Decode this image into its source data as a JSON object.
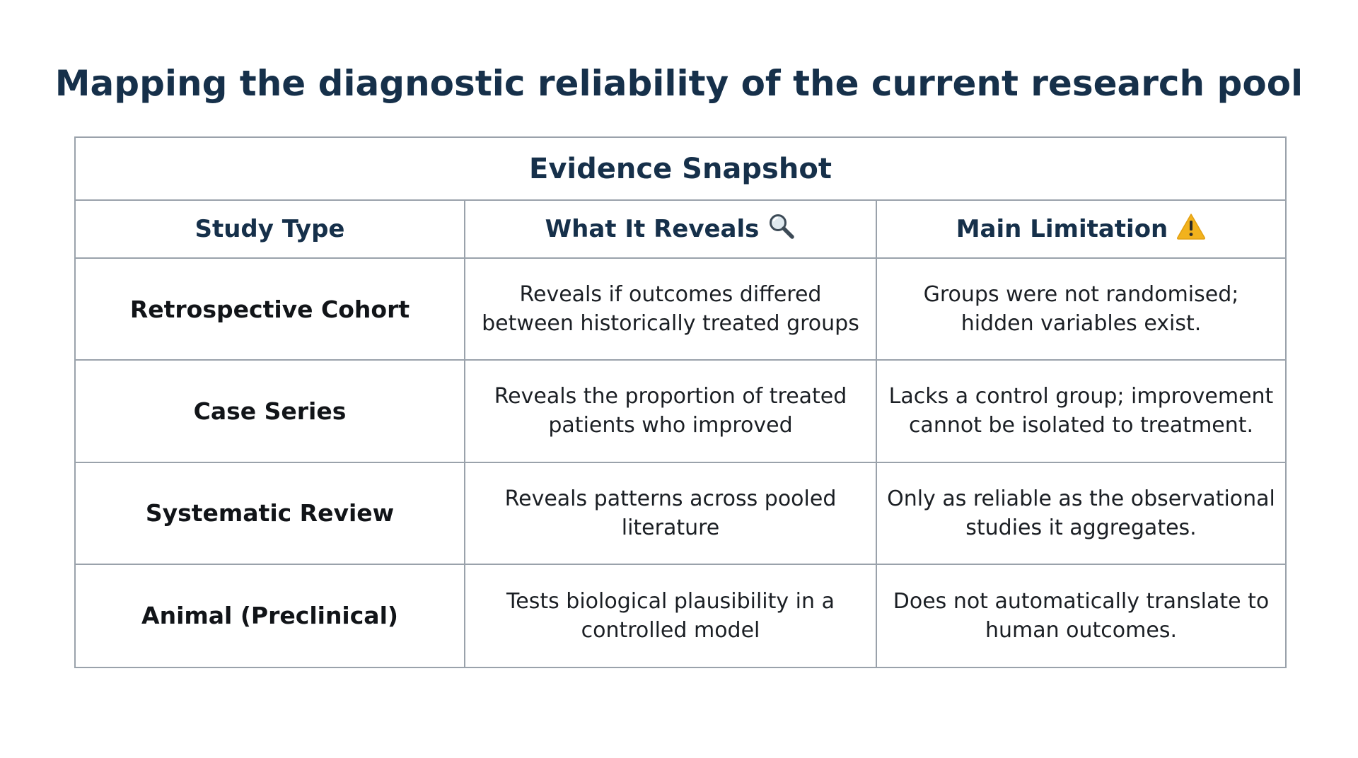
{
  "page": {
    "title": "Mapping the diagnostic reliability of the current research pool"
  },
  "table": {
    "caption": "Evidence Snapshot",
    "columns": [
      {
        "label": "Study Type",
        "icon": ""
      },
      {
        "label": "What It Reveals",
        "icon": "magnifying-glass-icon"
      },
      {
        "label": "Main Limitation",
        "icon": "warning-icon"
      }
    ],
    "rows": [
      {
        "study_type": "Retrospective Cohort",
        "reveals": [
          "Reveals if outcomes differed",
          "between historically treated groups"
        ],
        "limitation": [
          "Groups were not randomised;",
          "hidden variables exist."
        ]
      },
      {
        "study_type": "Case Series",
        "reveals": [
          "Reveals the proportion of treated",
          "patients who improved"
        ],
        "limitation": [
          "Lacks a control group; improvement",
          "cannot be isolated to treatment."
        ]
      },
      {
        "study_type": "Systematic Review",
        "reveals": [
          "Reveals patterns across pooled",
          "literature"
        ],
        "limitation": [
          "Only as reliable as the observational",
          "studies it aggregates."
        ]
      },
      {
        "study_type": "Animal (Preclinical)",
        "reveals": [
          "Tests biological plausibility in a",
          "controlled model"
        ],
        "limitation": [
          "Does not automatically translate to",
          "human outcomes."
        ]
      }
    ]
  },
  "colors": {
    "title": "#16304a",
    "border": "#9aa2ab",
    "warning": "#f2b21d"
  }
}
